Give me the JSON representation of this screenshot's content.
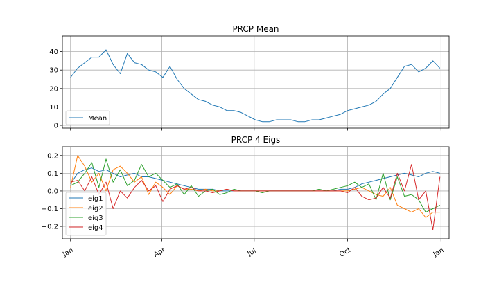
{
  "chart_data": [
    {
      "type": "line",
      "title": "PRCP Mean",
      "xlabel": "",
      "ylabel": "",
      "xlim": [
        -8,
        373
      ],
      "ylim": [
        -1.5,
        48.5
      ],
      "yticks": [
        0,
        10,
        20,
        30,
        40
      ],
      "ytick_labels": [
        "0",
        "10",
        "20",
        "30",
        "40"
      ],
      "xticks": [
        0,
        90,
        181,
        273,
        365
      ],
      "grid": true,
      "legend_position": "lower-left",
      "colors": [
        "#1f77b4"
      ],
      "series": [
        {
          "name": "Mean",
          "x": [
            0,
            7,
            14,
            21,
            28,
            35,
            42,
            49,
            56,
            63,
            70,
            77,
            84,
            91,
            98,
            105,
            112,
            119,
            126,
            133,
            140,
            147,
            154,
            161,
            168,
            175,
            182,
            189,
            196,
            203,
            210,
            217,
            224,
            231,
            238,
            245,
            252,
            259,
            266,
            273,
            280,
            287,
            294,
            301,
            308,
            315,
            322,
            329,
            336,
            343,
            350,
            357,
            364
          ],
          "values": [
            26,
            31,
            34,
            37,
            37,
            41,
            33,
            28,
            39,
            34,
            33,
            30,
            29,
            26,
            32,
            25,
            20,
            17,
            14,
            13,
            11,
            10,
            8,
            8,
            7,
            5,
            3,
            2,
            2,
            3,
            3,
            3,
            2,
            2,
            3,
            3,
            4,
            5,
            6,
            8,
            9,
            10,
            11,
            13,
            17,
            20,
            26,
            32,
            33,
            29,
            31,
            35,
            31
          ]
        }
      ]
    },
    {
      "type": "line",
      "title": "PRCP 4 Eigs",
      "xlabel": "",
      "ylabel": "",
      "xlim": [
        -8,
        373
      ],
      "ylim": [
        -0.27,
        0.25
      ],
      "yticks": [
        -0.2,
        -0.1,
        0.0,
        0.1,
        0.2
      ],
      "ytick_labels": [
        "−0.2",
        "−0.1",
        "0.0",
        "0.1",
        "0.2"
      ],
      "xticks": [
        0,
        90,
        181,
        273,
        365
      ],
      "xtick_labels": [
        "Jan",
        "Apr",
        "Jul",
        "Oct",
        "Jan"
      ],
      "grid": true,
      "legend_position": "lower-left",
      "colors": [
        "#1f77b4",
        "#ff7f0e",
        "#2ca02c",
        "#d62728"
      ],
      "series": [
        {
          "name": "eig1",
          "x": [
            0,
            7,
            14,
            21,
            28,
            35,
            42,
            49,
            56,
            63,
            70,
            77,
            84,
            91,
            98,
            105,
            112,
            119,
            126,
            133,
            140,
            147,
            154,
            161,
            168,
            175,
            182,
            189,
            196,
            203,
            210,
            217,
            224,
            231,
            238,
            245,
            252,
            259,
            266,
            273,
            280,
            287,
            294,
            301,
            308,
            315,
            322,
            329,
            336,
            343,
            350,
            357,
            364
          ],
          "values": [
            0.04,
            0.1,
            0.12,
            0.13,
            0.11,
            0.12,
            0.1,
            0.08,
            0.09,
            0.1,
            0.08,
            0.08,
            0.07,
            0.06,
            0.05,
            0.04,
            0.03,
            0.02,
            0.01,
            0.01,
            0.01,
            0.0,
            0.0,
            0.0,
            0.0,
            0.0,
            0.0,
            0.0,
            0.0,
            0.0,
            0.0,
            0.0,
            0.0,
            0.0,
            0.0,
            0.0,
            0.0,
            0.0,
            0.01,
            0.01,
            0.02,
            0.04,
            0.05,
            0.06,
            0.07,
            0.08,
            0.09,
            0.1,
            0.09,
            0.08,
            0.1,
            0.11,
            0.1
          ]
        },
        {
          "name": "eig2",
          "x": [
            0,
            7,
            14,
            21,
            28,
            35,
            42,
            49,
            56,
            63,
            70,
            77,
            84,
            91,
            98,
            105,
            112,
            119,
            126,
            133,
            140,
            147,
            154,
            161,
            168,
            175,
            182,
            189,
            196,
            203,
            210,
            217,
            224,
            231,
            238,
            245,
            252,
            259,
            266,
            273,
            280,
            287,
            294,
            301,
            308,
            315,
            322,
            329,
            336,
            343,
            350,
            357,
            364
          ],
          "values": [
            0.02,
            0.2,
            0.14,
            0.05,
            0.1,
            0.0,
            0.12,
            0.14,
            0.1,
            0.05,
            0.08,
            -0.02,
            0.05,
            0.02,
            -0.02,
            0.03,
            0.01,
            0.01,
            0.0,
            0.01,
            0.0,
            0.0,
            0.01,
            0.0,
            0.0,
            0.0,
            0.0,
            0.0,
            0.0,
            0.0,
            0.0,
            0.0,
            0.0,
            0.0,
            0.0,
            0.0,
            0.0,
            0.0,
            0.0,
            0.0,
            0.01,
            0.02,
            0.0,
            -0.02,
            -0.03,
            0.02,
            -0.08,
            -0.1,
            -0.12,
            -0.1,
            -0.15,
            -0.12,
            -0.12
          ]
        },
        {
          "name": "eig3",
          "x": [
            0,
            7,
            14,
            21,
            28,
            35,
            42,
            49,
            56,
            63,
            70,
            77,
            84,
            91,
            98,
            105,
            112,
            119,
            126,
            133,
            140,
            147,
            154,
            161,
            168,
            175,
            182,
            189,
            196,
            203,
            210,
            217,
            224,
            231,
            238,
            245,
            252,
            259,
            266,
            273,
            280,
            287,
            294,
            301,
            308,
            315,
            322,
            329,
            336,
            343,
            350,
            357,
            364
          ],
          "values": [
            0.03,
            0.05,
            0.1,
            0.16,
            0.02,
            0.18,
            0.05,
            0.12,
            0.03,
            0.06,
            0.15,
            0.08,
            0.1,
            0.06,
            0.02,
            0.04,
            -0.02,
            0.03,
            -0.03,
            0.0,
            0.01,
            -0.02,
            -0.01,
            0.01,
            0.0,
            0.0,
            0.0,
            -0.01,
            0.0,
            0.0,
            0.0,
            0.0,
            0.0,
            0.0,
            0.0,
            0.01,
            0.0,
            0.01,
            0.02,
            0.03,
            0.05,
            0.02,
            0.04,
            -0.05,
            0.1,
            -0.05,
            0.08,
            -0.03,
            -0.02,
            -0.05,
            -0.12,
            -0.1,
            -0.08
          ]
        },
        {
          "name": "eig4",
          "x": [
            0,
            7,
            14,
            21,
            28,
            35,
            42,
            49,
            56,
            63,
            70,
            77,
            84,
            91,
            98,
            105,
            112,
            119,
            126,
            133,
            140,
            147,
            154,
            161,
            168,
            175,
            182,
            189,
            196,
            203,
            210,
            217,
            224,
            231,
            238,
            245,
            252,
            259,
            266,
            273,
            280,
            287,
            294,
            301,
            308,
            315,
            322,
            329,
            336,
            343,
            350,
            357,
            364
          ],
          "values": [
            0.05,
            0.06,
            0.0,
            0.08,
            -0.02,
            0.05,
            -0.1,
            0.0,
            -0.04,
            0.02,
            0.06,
            0.0,
            0.03,
            -0.06,
            0.01,
            0.03,
            0.01,
            0.02,
            0.0,
            0.0,
            -0.01,
            0.0,
            0.01,
            0.0,
            0.0,
            0.0,
            0.0,
            0.0,
            0.0,
            0.0,
            0.0,
            0.0,
            0.0,
            0.0,
            0.0,
            0.0,
            0.0,
            0.0,
            0.0,
            -0.01,
            0.02,
            -0.03,
            -0.05,
            -0.04,
            0.02,
            -0.04,
            0.1,
            0.0,
            0.15,
            -0.05,
            0.0,
            -0.22,
            0.08
          ]
        }
      ]
    }
  ]
}
